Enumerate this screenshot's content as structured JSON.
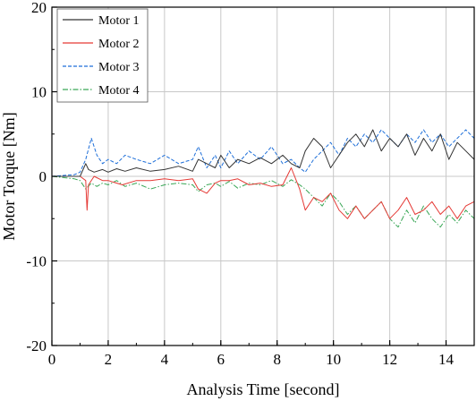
{
  "chart_data": {
    "type": "line",
    "title": "",
    "xlabel": "Analysis Time [second]",
    "ylabel": "Motor Torque [Nm]",
    "xlim": [
      0,
      15
    ],
    "ylim": [
      -20,
      20
    ],
    "xticks": [
      0,
      2,
      4,
      6,
      8,
      10,
      12,
      14
    ],
    "yticks": [
      -20,
      -10,
      0,
      10,
      20
    ],
    "grid": true,
    "legend_position": "top-left",
    "series": [
      {
        "name": "Motor 1",
        "color": "#333333",
        "dash": "solid",
        "x": [
          0,
          1.0,
          1.2,
          1.3,
          1.5,
          1.8,
          2.0,
          2.3,
          2.6,
          3.0,
          3.5,
          4.0,
          4.5,
          5.0,
          5.2,
          5.5,
          5.8,
          6.0,
          6.3,
          6.6,
          7.0,
          7.4,
          7.8,
          8.2,
          8.5,
          8.8,
          9.0,
          9.3,
          9.6,
          9.9,
          10.2,
          10.5,
          10.8,
          11.1,
          11.4,
          11.7,
          12.0,
          12.3,
          12.6,
          12.9,
          13.2,
          13.5,
          13.8,
          14.1,
          14.4,
          14.7,
          15.0
        ],
        "y": [
          0,
          0,
          1.5,
          0.8,
          0.5,
          0.8,
          0.5,
          0.9,
          0.6,
          1.0,
          0.6,
          0.8,
          1.2,
          0.6,
          2.0,
          1.5,
          1.0,
          2.5,
          1.0,
          2.0,
          1.5,
          2.2,
          1.5,
          2.5,
          1.5,
          1.0,
          3.0,
          4.5,
          3.5,
          1.0,
          2.5,
          4.0,
          5.0,
          3.5,
          5.5,
          3.0,
          4.5,
          3.5,
          5.0,
          2.5,
          4.5,
          3.0,
          5.0,
          2.0,
          4.0,
          3.0,
          2.0
        ]
      },
      {
        "name": "Motor 2",
        "color": "#e53935",
        "dash": "solid",
        "x": [
          0,
          1.0,
          1.2,
          1.25,
          1.3,
          1.5,
          1.8,
          2.0,
          2.5,
          3.0,
          3.5,
          4.0,
          4.5,
          5.0,
          5.2,
          5.5,
          5.8,
          6.0,
          6.3,
          6.6,
          7.0,
          7.4,
          7.8,
          8.2,
          8.5,
          8.8,
          9.0,
          9.3,
          9.6,
          9.9,
          10.2,
          10.5,
          10.8,
          11.1,
          11.4,
          11.7,
          12.0,
          12.3,
          12.6,
          12.9,
          13.2,
          13.5,
          13.8,
          14.1,
          14.4,
          14.7,
          15.0
        ],
        "y": [
          0,
          0,
          -0.5,
          -4.0,
          -1.0,
          0,
          -0.5,
          -0.5,
          -1.0,
          -0.5,
          -0.5,
          -0.3,
          -0.5,
          -0.3,
          -1.5,
          -2.0,
          -0.8,
          -0.5,
          -0.5,
          -0.3,
          -1.0,
          -0.8,
          -1.2,
          -1.0,
          1.0,
          -1.5,
          -4.0,
          -2.5,
          -3.0,
          -2.0,
          -4.0,
          -5.0,
          -3.5,
          -5.0,
          -4.0,
          -3.0,
          -5.0,
          -4.0,
          -2.5,
          -4.5,
          -4.0,
          -3.0,
          -4.5,
          -3.5,
          -5.0,
          -3.5,
          -3.0
        ]
      },
      {
        "name": "Motor 3",
        "color": "#1e6fd9",
        "dash": "dash",
        "x": [
          0,
          0.8,
          1.0,
          1.2,
          1.4,
          1.6,
          1.8,
          2.0,
          2.3,
          2.6,
          3.0,
          3.5,
          4.0,
          4.5,
          5.0,
          5.2,
          5.5,
          5.8,
          6.0,
          6.3,
          6.6,
          7.0,
          7.4,
          7.8,
          8.2,
          8.5,
          8.8,
          9.0,
          9.3,
          9.6,
          9.9,
          10.2,
          10.5,
          10.8,
          11.1,
          11.4,
          11.7,
          12.0,
          12.3,
          12.6,
          12.9,
          13.2,
          13.5,
          13.8,
          14.1,
          14.4,
          14.7,
          15.0
        ],
        "y": [
          0,
          0.2,
          0.5,
          2.0,
          4.5,
          2.5,
          1.5,
          2.0,
          1.5,
          2.5,
          2.0,
          1.5,
          2.5,
          1.5,
          2.0,
          3.5,
          1.0,
          2.5,
          1.0,
          3.0,
          1.5,
          3.0,
          2.0,
          3.5,
          1.5,
          2.0,
          1.0,
          0.5,
          2.0,
          3.0,
          4.0,
          2.5,
          4.5,
          3.5,
          5.0,
          4.0,
          5.5,
          4.5,
          3.5,
          5.0,
          4.0,
          5.5,
          4.0,
          5.0,
          3.5,
          4.5,
          5.5,
          4.5
        ]
      },
      {
        "name": "Motor 4",
        "color": "#3aa757",
        "dash": "dashdot",
        "x": [
          0,
          0.8,
          1.0,
          1.2,
          1.4,
          1.6,
          1.8,
          2.0,
          2.3,
          2.6,
          3.0,
          3.5,
          4.0,
          4.5,
          5.0,
          5.2,
          5.5,
          5.8,
          6.0,
          6.3,
          6.6,
          7.0,
          7.4,
          7.8,
          8.2,
          8.5,
          8.8,
          9.0,
          9.3,
          9.6,
          9.9,
          10.2,
          10.5,
          10.8,
          11.1,
          11.4,
          11.7,
          12.0,
          12.3,
          12.6,
          12.9,
          13.2,
          13.5,
          13.8,
          14.1,
          14.4,
          14.7,
          15.0
        ],
        "y": [
          0,
          -0.3,
          -0.5,
          -1.5,
          -0.8,
          -1.2,
          -0.8,
          -1.0,
          -0.5,
          -1.2,
          -0.8,
          -1.5,
          -1.0,
          -0.8,
          -1.0,
          -1.8,
          -1.0,
          -0.8,
          -1.2,
          -0.6,
          -1.4,
          -0.8,
          -1.0,
          -0.5,
          -1.2,
          -0.4,
          -1.0,
          -1.5,
          -2.5,
          -3.5,
          -2.0,
          -3.0,
          -4.5,
          -3.5,
          -5.0,
          -4.0,
          -3.0,
          -5.0,
          -6.0,
          -4.0,
          -5.5,
          -3.5,
          -5.0,
          -6.0,
          -4.5,
          -5.5,
          -4.0,
          -5.0
        ]
      }
    ]
  }
}
